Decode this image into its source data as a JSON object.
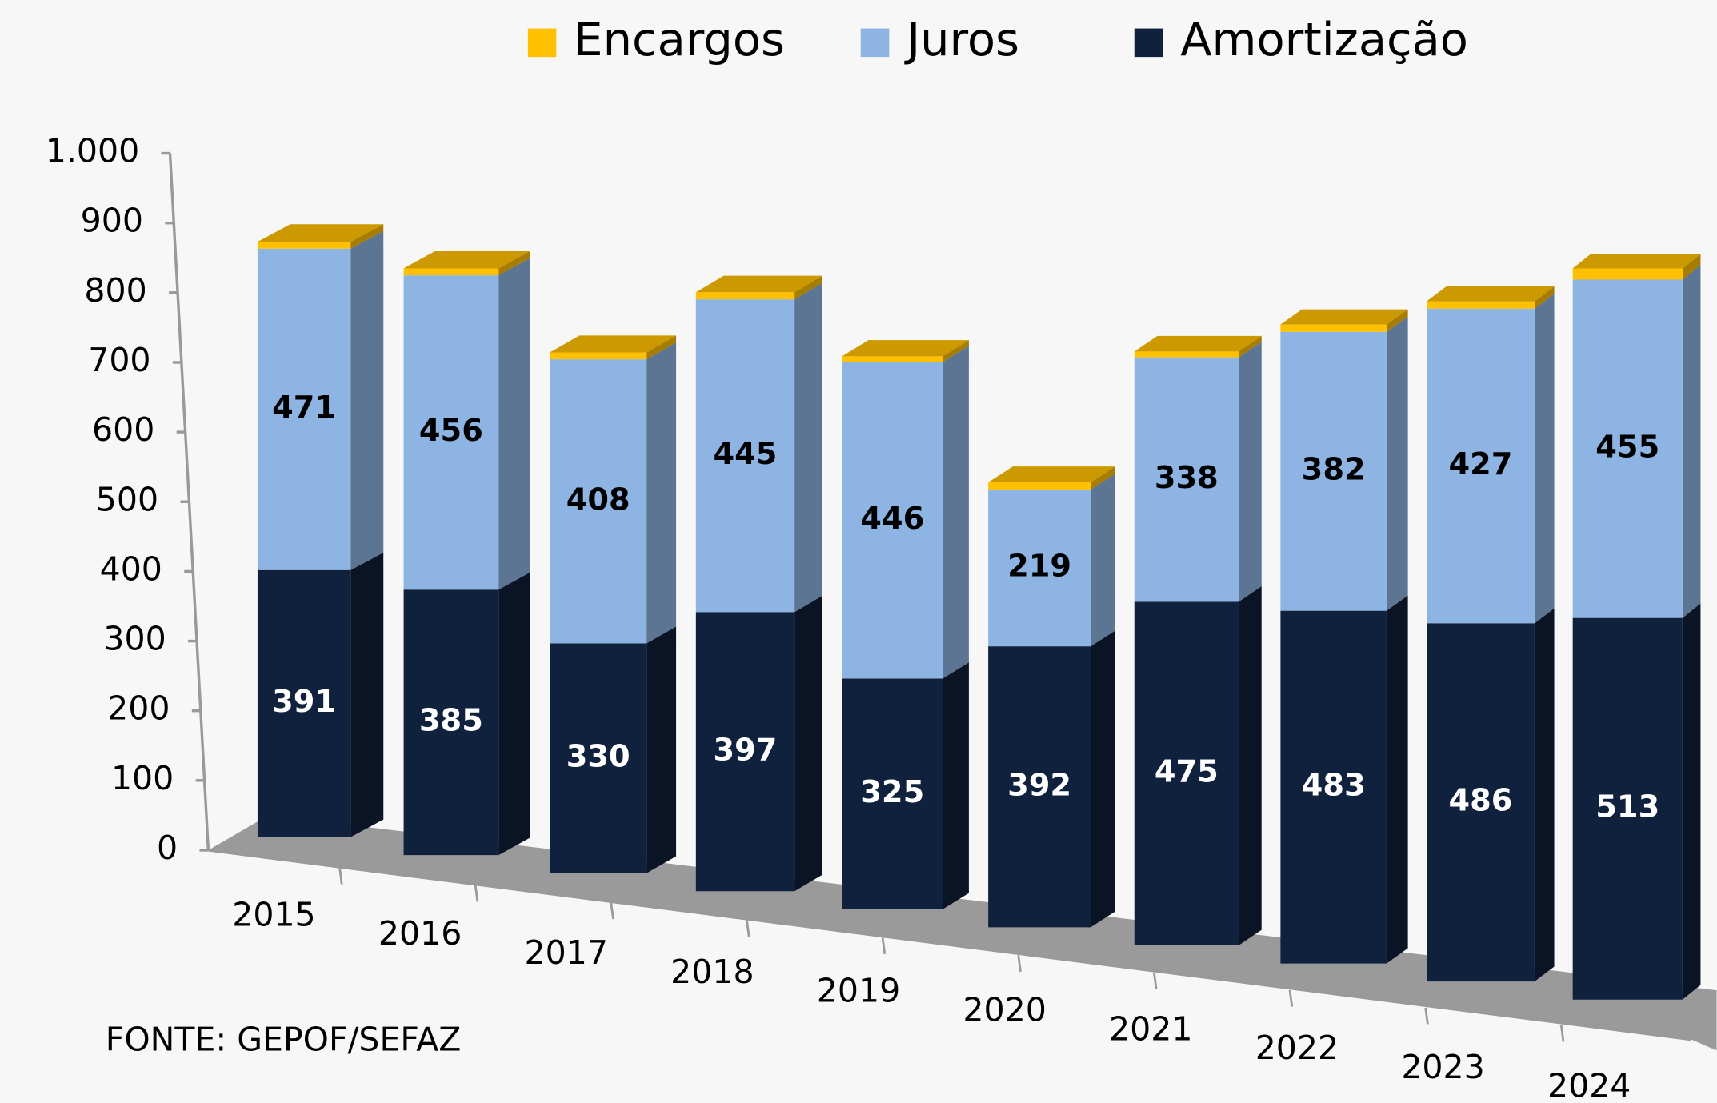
{
  "chart_data": {
    "type": "bar3d_stacked",
    "categories": [
      "2015",
      "2016",
      "2017",
      "2018",
      "2019",
      "2020",
      "2021",
      "2022",
      "2023",
      "2024"
    ],
    "series": [
      {
        "name": "Amortização",
        "color": "#10213d",
        "values": [
          391,
          385,
          330,
          397,
          325,
          392,
          475,
          483,
          486,
          513
        ]
      },
      {
        "name": "Juros",
        "color": "#8db4e2",
        "values": [
          471,
          456,
          408,
          445,
          446,
          219,
          338,
          382,
          427,
          455
        ]
      },
      {
        "name": "Encargos",
        "color": "#ffc000",
        "values": [
          10,
          10,
          10,
          10,
          8,
          10,
          8,
          10,
          10,
          15
        ]
      }
    ],
    "ylim": [
      0,
      1000
    ],
    "yticks": [
      0,
      100,
      200,
      300,
      400,
      500,
      600,
      700,
      800,
      900,
      {
        "value": 1000,
        "label": "1.000"
      }
    ],
    "legend_order": [
      "Encargos",
      "Juros",
      "Amortização"
    ],
    "source": "FONTE: GEPOF/SEFAZ"
  }
}
